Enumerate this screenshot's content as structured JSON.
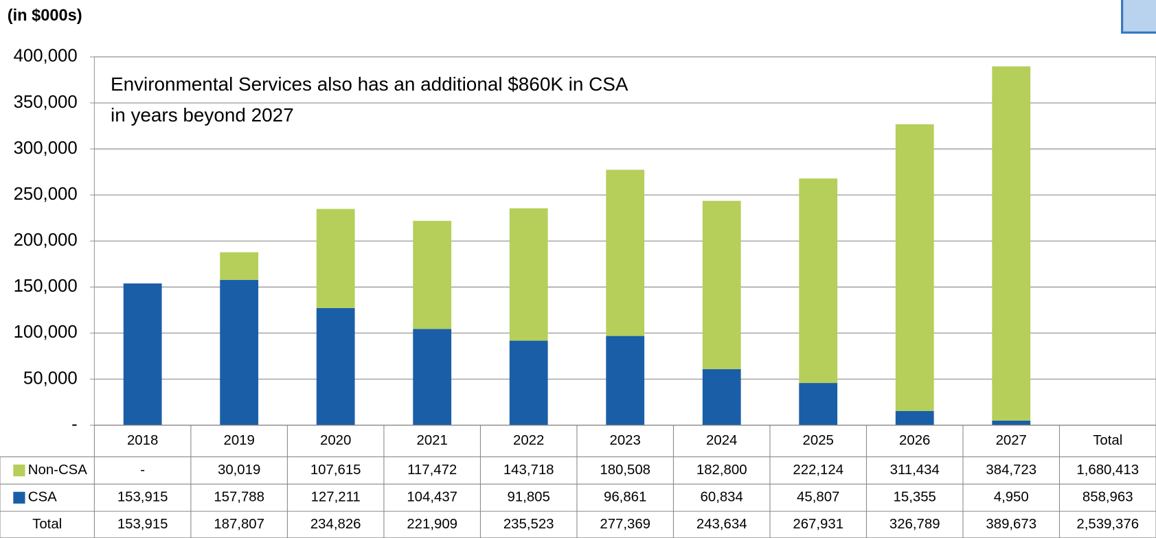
{
  "chart_data": {
    "type": "stacked_bar",
    "title": "(in $000s)",
    "annotation": [
      "Environmental Services also has an additional $860K in CSA",
      "in years beyond 2027"
    ],
    "categories": [
      "2018",
      "2019",
      "2020",
      "2021",
      "2022",
      "2023",
      "2024",
      "2025",
      "2026",
      "2027"
    ],
    "total_header": "Total",
    "series": [
      {
        "name": "Non-CSA",
        "color": "#b5cf5a",
        "values": [
          0,
          30019,
          107615,
          117472,
          143718,
          180508,
          182800,
          222124,
          311434,
          384723
        ],
        "value_labels": [
          "-",
          "30,019",
          "107,615",
          "117,472",
          "143,718",
          "180,508",
          "182,800",
          "222,124",
          "311,434",
          "384,723"
        ],
        "total": 1680413,
        "total_label": "1,680,413"
      },
      {
        "name": "CSA",
        "color": "#1a5ea8",
        "values": [
          153915,
          157788,
          127211,
          104437,
          91805,
          96861,
          60834,
          45807,
          15355,
          4950
        ],
        "value_labels": [
          "153,915",
          "157,788",
          "127,211",
          "104,437",
          "91,805",
          "96,861",
          "60,834",
          "45,807",
          "15,355",
          "4,950"
        ],
        "total": 858963,
        "total_label": "858,963"
      }
    ],
    "total_row": {
      "name": "Total",
      "values": [
        153915,
        187807,
        234826,
        221909,
        235523,
        277369,
        243634,
        267931,
        326789,
        389673
      ],
      "value_labels": [
        "153,915",
        "187,807",
        "234,826",
        "221,909",
        "235,523",
        "277,369",
        "243,634",
        "267,931",
        "326,789",
        "389,673"
      ],
      "total": 2539376,
      "total_label": "2,539,376"
    },
    "ylim": [
      0,
      400000
    ],
    "yticks": [
      {
        "value": 0,
        "label": "-"
      },
      {
        "value": 50000,
        "label": "50,000"
      },
      {
        "value": 100000,
        "label": "100,000"
      },
      {
        "value": 150000,
        "label": "150,000"
      },
      {
        "value": 200000,
        "label": "200,000"
      },
      {
        "value": 250000,
        "label": "250,000"
      },
      {
        "value": 300000,
        "label": "300,000"
      },
      {
        "value": 350000,
        "label": "350,000"
      },
      {
        "value": 400000,
        "label": "400,000"
      }
    ],
    "grid": true
  }
}
